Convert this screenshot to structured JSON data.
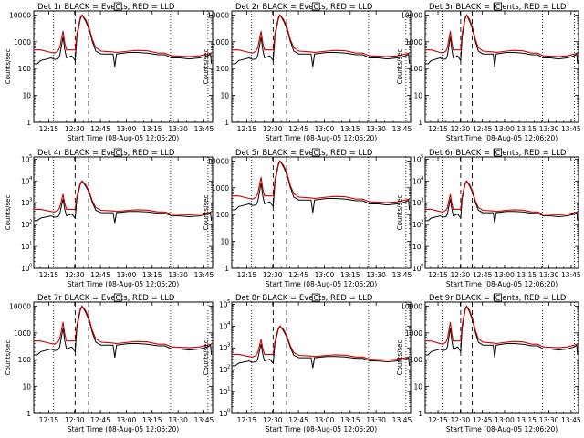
{
  "figure": {
    "panel_titles": [
      "Det 1r BLACK = Events, RED = LLD",
      "Det 2r BLACK = Events, RED = LLD",
      "Det 3r BLACK = Events, RED = LLD",
      "Det 4r BLACK = Events, RED = LLD",
      "Det 5r BLACK = Events, RED = LLD",
      "Det 6r BLACK = Events, RED = LLD",
      "Det 7r BLACK = Events, RED = LLD",
      "Det 8r BLACK = Events, RED = LLD",
      "Det 9r BLACK = Events, RED = LLD"
    ],
    "panel_marker": "C",
    "xlabel": "Start Time (08-Aug-05 12:06:20)",
    "ylabel": "Counts/sec"
  },
  "colors": {
    "events": "#000000",
    "lld": "#cc0000",
    "background": "#ffffff",
    "axes": "#000000"
  },
  "chart_data": {
    "type": "line",
    "panels": 9,
    "layout": "3x3",
    "x_range_minutes_after_12:06:20": [
      0,
      103.7
    ],
    "x_ticks": [
      "12:15",
      "12:30",
      "12:45",
      "13:00",
      "13:15",
      "13:30",
      "13:45"
    ],
    "y_scale": "log",
    "y_ticks_decimal": [
      "1",
      "10",
      "100",
      "1000",
      "10000"
    ],
    "y_ticks_exponent": [
      "10^0",
      "10^1",
      "10^2",
      "10^3",
      "10^4",
      "10^5"
    ],
    "panel_y_tick_style": [
      "decimal",
      "decimal",
      "decimal",
      "exponent",
      "decimal",
      "exponent",
      "decimal",
      "exponent",
      "decimal"
    ],
    "dotted_lines_minutes": [
      11.5,
      79.3,
      101.0
    ],
    "dashed_lines_minutes": [
      24.0,
      31.8
    ],
    "events_series_approx_counts": [
      [
        0,
        150
      ],
      [
        2,
        150
      ],
      [
        4,
        200
      ],
      [
        10,
        250
      ],
      [
        12,
        220
      ],
      [
        14,
        230
      ],
      [
        15,
        300
      ],
      [
        17,
        1500
      ],
      [
        18,
        500
      ],
      [
        19,
        250
      ],
      [
        22,
        300
      ],
      [
        24,
        200
      ],
      [
        25,
        1500
      ],
      [
        27,
        7000
      ],
      [
        28,
        10000
      ],
      [
        30,
        6000
      ],
      [
        32,
        3000
      ],
      [
        34,
        1000
      ],
      [
        36,
        450
      ],
      [
        39,
        350
      ],
      [
        46,
        350
      ],
      [
        47,
        120
      ],
      [
        48,
        350
      ],
      [
        55,
        400
      ],
      [
        60,
        400
      ],
      [
        66,
        380
      ],
      [
        72,
        330
      ],
      [
        76,
        330
      ],
      [
        80,
        250
      ],
      [
        85,
        250
      ],
      [
        90,
        230
      ],
      [
        96,
        250
      ],
      [
        101,
        300
      ],
      [
        102.5,
        350
      ],
      [
        103,
        150
      ]
    ],
    "lld_series_approx_counts": [
      [
        0,
        500
      ],
      [
        2,
        500
      ],
      [
        4,
        500
      ],
      [
        10,
        400
      ],
      [
        12,
        380
      ],
      [
        14,
        450
      ],
      [
        15,
        600
      ],
      [
        17,
        2500
      ],
      [
        18,
        900
      ],
      [
        19,
        500
      ],
      [
        24,
        500
      ],
      [
        25,
        2000
      ],
      [
        27,
        8000
      ],
      [
        28,
        10000
      ],
      [
        30,
        7000
      ],
      [
        32,
        3500
      ],
      [
        34,
        1200
      ],
      [
        36,
        600
      ],
      [
        39,
        450
      ],
      [
        46,
        420
      ],
      [
        48,
        400
      ],
      [
        55,
        450
      ],
      [
        60,
        480
      ],
      [
        66,
        460
      ],
      [
        72,
        380
      ],
      [
        76,
        380
      ],
      [
        80,
        300
      ],
      [
        85,
        290
      ],
      [
        90,
        280
      ],
      [
        96,
        300
      ],
      [
        101,
        350
      ],
      [
        102.5,
        380
      ],
      [
        103,
        350
      ]
    ]
  }
}
